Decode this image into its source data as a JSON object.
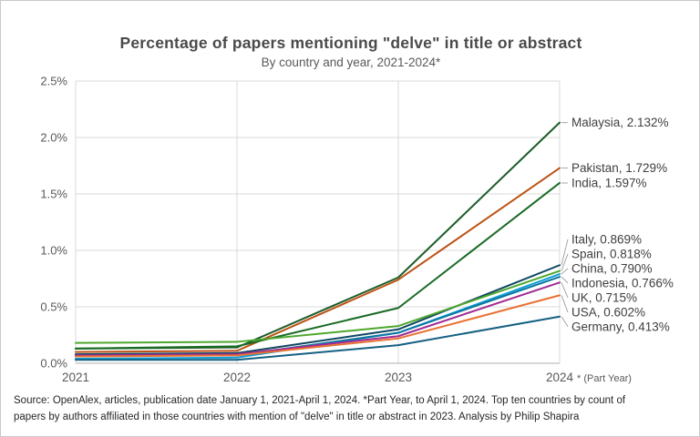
{
  "chart_data": {
    "type": "line",
    "title": "Percentage of papers mentioning \"delve\" in title or abstract",
    "subtitle": "By country and year, 2021-2024*",
    "x_labels": [
      "2021",
      "2022",
      "2023",
      "2024"
    ],
    "x_last_suffix": "* (Part Year)",
    "y_ticks": [
      "0.0%",
      "0.5%",
      "1.0%",
      "1.5%",
      "2.0%",
      "2.5%"
    ],
    "ylim": [
      0,
      2.5
    ],
    "grid": true,
    "legend_position": "right-end-annotations",
    "series": [
      {
        "name": "Malaysia",
        "color": "#1C5C28",
        "values": [
          0.13,
          0.14,
          0.76,
          2.132
        ],
        "label": "Malaysia, 2.132%"
      },
      {
        "name": "Pakistan",
        "color": "#BC5215",
        "values": [
          0.1,
          0.11,
          0.74,
          1.729
        ],
        "label": "Pakistan, 1.729%"
      },
      {
        "name": "India",
        "color": "#196B24",
        "values": [
          0.13,
          0.15,
          0.49,
          1.597
        ],
        "label": "India, 1.597%"
      },
      {
        "name": "Italy",
        "color": "#0F4761",
        "values": [
          0.08,
          0.09,
          0.3,
          0.869
        ],
        "label": "Italy, 0.869%"
      },
      {
        "name": "Spain",
        "color": "#4EA72E",
        "values": [
          0.18,
          0.19,
          0.33,
          0.818
        ],
        "label": "Spain, 0.818%"
      },
      {
        "name": "China",
        "color": "#0F9ED5",
        "values": [
          0.04,
          0.05,
          0.27,
          0.79
        ],
        "label": "China, 0.790%"
      },
      {
        "name": "Indonesia",
        "color": "#0B76A0",
        "values": [
          0.07,
          0.07,
          0.27,
          0.766
        ],
        "label": "Indonesia, 0.766%"
      },
      {
        "name": "UK",
        "color": "#A02B93",
        "values": [
          0.07,
          0.08,
          0.24,
          0.715
        ],
        "label": "UK, 0.715%"
      },
      {
        "name": "USA",
        "color": "#E97132",
        "values": [
          0.06,
          0.07,
          0.22,
          0.602
        ],
        "label": "USA, 0.602%"
      },
      {
        "name": "Germany",
        "color": "#156082",
        "values": [
          0.03,
          0.03,
          0.16,
          0.413
        ],
        "label": "Germany, 0.413%"
      }
    ]
  },
  "source": {
    "line1": "Source: OpenAlex, articles, publication date January 1, 2021-April 1, 2024. *Part Year, to April 1, 2024. Top ten countries by count of",
    "line2": "papers by authors affiliated in those countries with mention of \"delve\" in title or abstract in 2023. Analysis by Philip Shapira"
  },
  "colors": {
    "grid": "#D9D9D9",
    "axis_line": "#BFBFBF",
    "tick_text": "#595959",
    "label_text": "#3F3F3F",
    "leader": "#A6A6A6"
  }
}
